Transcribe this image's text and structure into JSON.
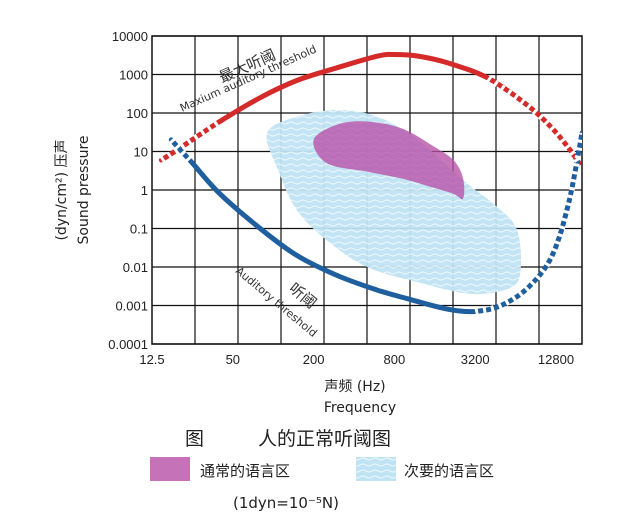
{
  "chart_data": {
    "type": "area",
    "ylabel_unit": "(dyn/cm²) 压声",
    "ylabel_en": "Sound pressure",
    "xlabel_cn": "声频 (Hz)",
    "xlabel_en": "Frequency",
    "x_scale": "log2",
    "y_scale": "log10",
    "xlim": [
      12.5,
      20000
    ],
    "ylim": [
      0.0001,
      10000
    ],
    "x_ticks": [
      "12.5",
      "50",
      "200",
      "800",
      "3200",
      "12800"
    ],
    "x_tick_values": [
      12.5,
      50,
      200,
      800,
      3200,
      12800
    ],
    "y_ticks": [
      "0.0001",
      "0.001",
      "0.01",
      "0.1",
      "1",
      "10",
      "100",
      "1000",
      "10000"
    ],
    "y_tick_values": [
      0.0001,
      0.001,
      0.01,
      0.1,
      1,
      10,
      100,
      1000,
      10000
    ],
    "grid": true,
    "series": [
      {
        "name": "最大听阈",
        "name_en": "Maxium auditory threshold",
        "color": "#d42a2a",
        "x": [
          14.7,
          20,
          40,
          80,
          150,
          300,
          600,
          800,
          1200,
          2000,
          4000,
          8000,
          12000,
          16000,
          19000
        ],
        "y": [
          6,
          12,
          60,
          250,
          700,
          1500,
          3000,
          3300,
          3000,
          2000,
          800,
          150,
          40,
          12,
          5
        ]
      },
      {
        "name": "听阈",
        "name_en": "Auditory threshold",
        "color": "#1f5f9e",
        "x": [
          17.4,
          25,
          40,
          80,
          150,
          300,
          600,
          1000,
          2000,
          3200,
          5000,
          8000,
          12000,
          16000,
          20000
        ],
        "y": [
          20,
          5,
          0.8,
          0.1,
          0.02,
          0.006,
          0.0025,
          0.0015,
          0.0008,
          0.0007,
          0.001,
          0.003,
          0.02,
          0.5,
          30
        ]
      }
    ],
    "regions": [
      {
        "name": "通常的语言区",
        "color": "#b74fa6",
        "x": [
          200,
          300,
          500,
          900,
          1500,
          2200,
          2600,
          2600,
          2200,
          1500,
          900,
          500,
          250,
          200
        ],
        "y": [
          20,
          50,
          60,
          40,
          15,
          6,
          2,
          0.6,
          0.8,
          1.2,
          2,
          3,
          5,
          20
        ]
      },
      {
        "name": "次要的语言区",
        "color": "#a9d8ee",
        "x": [
          90,
          150,
          300,
          600,
          1200,
          2500,
          4500,
          6500,
          7000,
          6000,
          3000,
          1200,
          500,
          250,
          150,
          110,
          90
        ],
        "y": [
          30,
          80,
          120,
          80,
          20,
          2,
          0.4,
          0.1,
          0.01,
          0.003,
          0.002,
          0.004,
          0.01,
          0.05,
          0.3,
          3,
          30
        ]
      }
    ],
    "annotations": {
      "max_cn": "最大听阈",
      "max_en": "Maxium auditory threshold",
      "min_cn": "听阈",
      "min_en": "Auditory threshold"
    }
  },
  "caption": {
    "fig": "图",
    "title": "人的正常听阈图"
  },
  "legend": {
    "main": "通常的语言区",
    "secondary": "次要的语言区",
    "main_color": "#b74fa6",
    "secondary_color": "#a9d8ee"
  },
  "unit_note": "(1dyn=10⁻⁵N)"
}
